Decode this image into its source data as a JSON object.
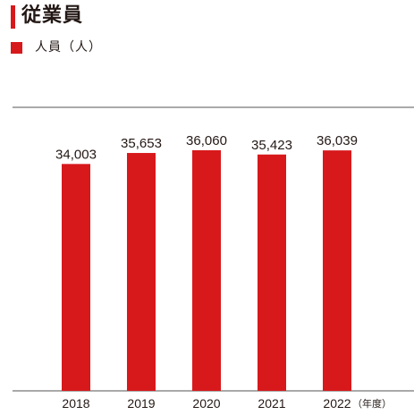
{
  "header": {
    "title": "従業員"
  },
  "legend": {
    "label": "人員（人）"
  },
  "colors": {
    "accent": "#d7191c",
    "axis": "#555555"
  },
  "chart_data": {
    "type": "bar",
    "title": "従業員",
    "categories": [
      "2018",
      "2019",
      "2020",
      "2021",
      "2022"
    ],
    "series": [
      {
        "name": "人員（人）",
        "values": [
          34003,
          35653,
          36060,
          35423,
          36039
        ]
      }
    ],
    "value_labels": [
      "34,003",
      "35,653",
      "36,060",
      "35,423",
      "36,039"
    ],
    "x_unit_label": "（年度）",
    "xlabel": "",
    "ylabel": "",
    "grid": false
  }
}
